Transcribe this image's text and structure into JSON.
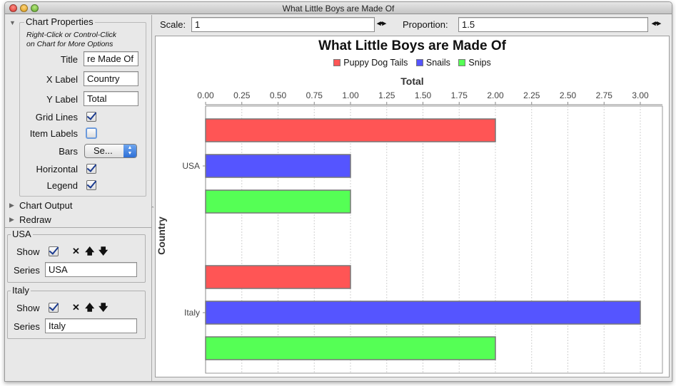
{
  "window": {
    "title": "What Little Boys are Made Of"
  },
  "sidebar": {
    "chart_properties": {
      "heading": "Chart Properties",
      "hint_line1": "Right-Click or Control-Click",
      "hint_line2": "on Chart for More Options",
      "title_label": "Title",
      "title_value": "re Made Of",
      "xlabel_label": "X Label",
      "xlabel_value": "Country",
      "ylabel_label": "Y Label",
      "ylabel_value": "Total",
      "gridlines_label": "Grid Lines",
      "gridlines_checked": true,
      "itemlabels_label": "Item Labels",
      "itemlabels_checked": false,
      "bars_label": "Bars",
      "bars_value": "Se...",
      "horizontal_label": "Horizontal",
      "horizontal_checked": true,
      "legend_label": "Legend",
      "legend_checked": true
    },
    "chart_output": "Chart Output",
    "redraw": "Redraw",
    "series_panels": [
      {
        "heading": "USA",
        "show_label": "Show",
        "show_checked": true,
        "series_label": "Series",
        "series_value": "USA"
      },
      {
        "heading": "Italy",
        "show_label": "Show",
        "show_checked": true,
        "series_label": "Series",
        "series_value": "Italy"
      }
    ]
  },
  "toolbar": {
    "scale_label": "Scale:",
    "scale_value": "1",
    "proportion_label": "Proportion:",
    "proportion_value": "1.5"
  },
  "icons": {
    "delete": "x-icon",
    "up": "arrow-up-icon",
    "down": "arrow-down-icon",
    "stepper": "stepper-icon"
  },
  "colors": {
    "red": "#ff5555",
    "blue": "#5555ff",
    "green": "#55ff55"
  },
  "chart_data": {
    "type": "bar",
    "orientation": "horizontal",
    "title": "What Little Boys are Made Of",
    "xlabel": "Country",
    "ylabel": "Total",
    "categories": [
      "USA",
      "Italy"
    ],
    "series": [
      {
        "name": "Puppy Dog Tails",
        "color": "#ff5555",
        "values": [
          2.0,
          1.0
        ]
      },
      {
        "name": "Snails",
        "color": "#5555ff",
        "values": [
          1.0,
          3.0
        ]
      },
      {
        "name": "Snips",
        "color": "#55ff55",
        "values": [
          1.0,
          2.0
        ]
      }
    ],
    "value_range": [
      0,
      3.0
    ],
    "ticks": [
      "0.00",
      "0.25",
      "0.50",
      "0.75",
      "1.00",
      "1.25",
      "1.50",
      "1.75",
      "2.00",
      "2.25",
      "2.50",
      "2.75",
      "3.00"
    ],
    "grid": true,
    "legend_position": "top"
  }
}
